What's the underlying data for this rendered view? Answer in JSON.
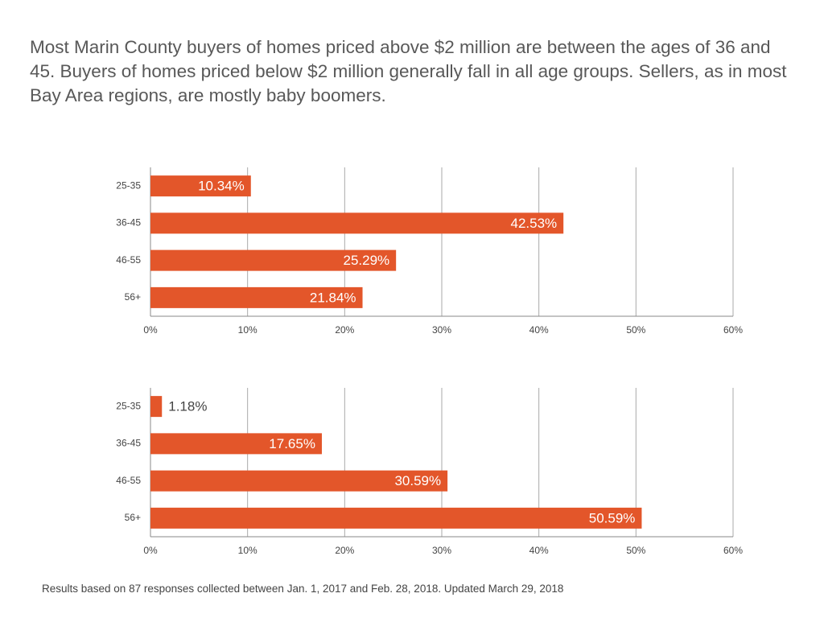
{
  "header": "Most Marin County buyers of homes priced above $2 million are between the ages of 36 and 45. Buyers of homes priced below $2 million generally fall in all age groups. Sellers, as in most Bay Area regions, are mostly baby boomers.",
  "footnote": "Results based on 87 responses collected between Jan. 1, 2017 and Feb. 28, 2018. Updated March 29, 2018",
  "chart_data": [
    {
      "type": "barh",
      "categories": [
        "25-35",
        "36-45",
        "46-55",
        "56+"
      ],
      "values": [
        10.34,
        42.53,
        25.29,
        21.84
      ],
      "value_labels": [
        "10.34%",
        "42.53%",
        "25.29%",
        "21.84%"
      ],
      "color": "#e3562a",
      "xlim": [
        0,
        60
      ],
      "xticks": [
        {
          "value": 0,
          "label": "0%"
        },
        {
          "value": 10,
          "label": "10%"
        },
        {
          "value": 20,
          "label": "20%"
        },
        {
          "value": 30,
          "label": "30%"
        },
        {
          "value": 40,
          "label": "40%"
        },
        {
          "value": 50,
          "label": "50%"
        },
        {
          "value": 60,
          "label": "60%"
        }
      ],
      "grid": true
    },
    {
      "type": "barh",
      "categories": [
        "25-35",
        "36-45",
        "46-55",
        "56+"
      ],
      "values": [
        1.18,
        17.65,
        30.59,
        50.59
      ],
      "value_labels": [
        "1.18%",
        "17.65%",
        "30.59%",
        "50.59%"
      ],
      "color": "#e3562a",
      "xlim": [
        0,
        60
      ],
      "xticks": [
        {
          "value": 0,
          "label": "0%"
        },
        {
          "value": 10,
          "label": "10%"
        },
        {
          "value": 20,
          "label": "20%"
        },
        {
          "value": 30,
          "label": "30%"
        },
        {
          "value": 40,
          "label": "40%"
        },
        {
          "value": 50,
          "label": "50%"
        },
        {
          "value": 60,
          "label": "60%"
        }
      ],
      "grid": true
    }
  ]
}
